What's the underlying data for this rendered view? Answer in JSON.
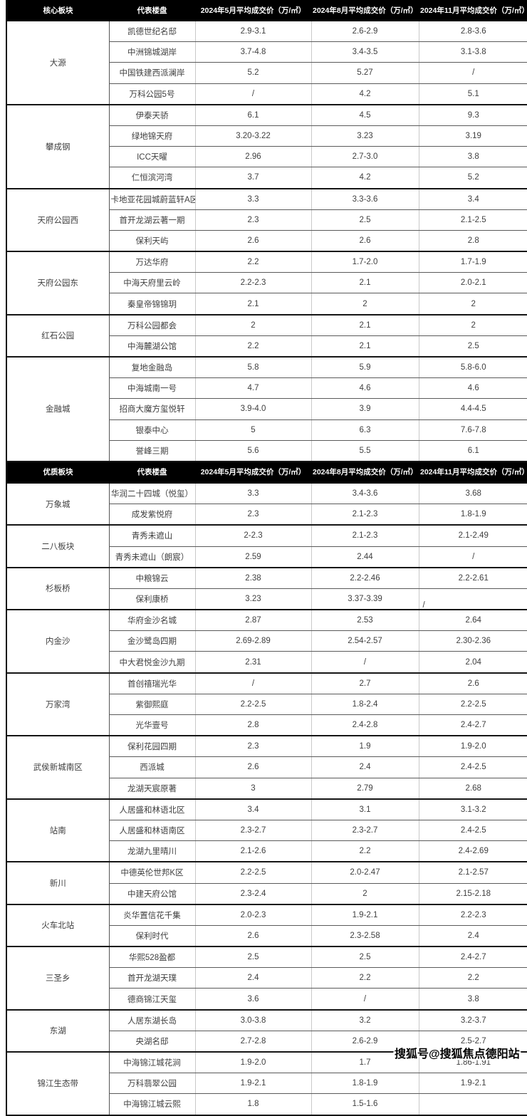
{
  "table": {
    "sections": [
      {
        "header": [
          "核心板块",
          "代表楼盘",
          "2024年5月平均成交价（万/㎡）",
          "2024年8月平均成交价（万/㎡）",
          "2024年11月平均成交价（万/㎡）"
        ],
        "groups": [
          {
            "area": "大源",
            "rows": [
              [
                "凯德世纪名邸",
                "2.9-3.1",
                "2.6-2.9",
                "2.8-3.6"
              ],
              [
                "中洲锦城湖岸",
                "3.7-4.8",
                "3.4-3.5",
                "3.1-3.8"
              ],
              [
                "中国铁建西派澜岸",
                "5.2",
                "5.27",
                "/"
              ],
              [
                "万科公园5号",
                "/",
                "4.2",
                "5.1"
              ]
            ]
          },
          {
            "area": "攀成钢",
            "rows": [
              [
                "伊泰天骄",
                "6.1",
                "4.5",
                "9.3"
              ],
              [
                "绿地锦天府",
                "3.20-3.22",
                "3.23",
                "3.19"
              ],
              [
                "ICC天曜",
                "2.96",
                "2.7-3.0",
                "3.8"
              ],
              [
                "仁恒滨河湾",
                "3.7",
                "4.2",
                "5.2"
              ]
            ]
          },
          {
            "area": "天府公园西",
            "rows": [
              [
                "卡地亚花园城蔚蓝轩A区",
                "3.3",
                "3.3-3.6",
                "3.4"
              ],
              [
                "首开龙湖云著一期",
                "2.3",
                "2.5",
                "2.1-2.5"
              ],
              [
                "保利天屿",
                "2.6",
                "2.6",
                "2.8"
              ]
            ]
          },
          {
            "area": "天府公园东",
            "rows": [
              [
                "万达华府",
                "2.2",
                "1.7-2.0",
                "1.7-1.9"
              ],
              [
                "中海天府里云岭",
                "2.2-2.3",
                "2.1",
                "2.0-2.1"
              ],
              [
                "秦皇帝锦锦玥",
                "2.1",
                "2",
                "2"
              ]
            ]
          },
          {
            "area": "红石公园",
            "rows": [
              [
                "万科公园都会",
                "2",
                "2.1",
                "2"
              ],
              [
                "中海麓湖公馆",
                "2.2",
                "2.1",
                "2.5"
              ]
            ]
          },
          {
            "area": "金融城",
            "rows": [
              [
                "复地金融岛",
                "5.8",
                "5.9",
                "5.8-6.0"
              ],
              [
                "中海城南一号",
                "4.7",
                "4.6",
                "4.6"
              ],
              [
                "招商大魔方玺悦轩",
                "3.9-4.0",
                "3.9",
                "4.4-4.5"
              ],
              [
                "银泰中心",
                "5",
                "6.3",
                "7.6-7.8"
              ],
              [
                "誉峰三期",
                "5.6",
                "5.5",
                "6.1"
              ]
            ]
          }
        ]
      },
      {
        "header": [
          "优质板块",
          "代表楼盘",
          "2024年5月平均成交价（万/㎡）",
          "2024年8月平均成交价（万/㎡）",
          "2024年11月平均成交价（万/㎡）"
        ],
        "groups": [
          {
            "area": "万象城",
            "rows": [
              [
                "华润二十四城（悦玺）",
                "3.3",
                "3.4-3.6",
                "3.68"
              ],
              [
                "成发紫悦府",
                "2.3",
                "2.1-2.3",
                "1.8-1.9"
              ]
            ]
          },
          {
            "area": "二八板块",
            "rows": [
              [
                "青秀未遮山",
                "2-2.3",
                "2.1-2.3",
                "2.1-2.49"
              ],
              [
                "青秀未遮山（朗宸）",
                "2.59",
                "2.44",
                "/"
              ]
            ]
          },
          {
            "area": "杉板桥",
            "rows": [
              [
                "中粮锦云",
                "2.38",
                "2.2-2.46",
                "2.2-2.61"
              ],
              [
                "保利康桥",
                "3.23",
                "3.37-3.39",
                "/"
              ]
            ]
          },
          {
            "area": "内金沙",
            "rows": [
              [
                "华府金沙名城",
                "2.87",
                "2.53",
                "2.64"
              ],
              [
                "金沙鹭岛四期",
                "2.69-2.89",
                "2.54-2.57",
                "2.30-2.36"
              ],
              [
                "中大君悦金沙九期",
                "2.31",
                "/",
                "2.04"
              ]
            ]
          },
          {
            "area": "万家湾",
            "rows": [
              [
                "首创禧瑞光华",
                "/",
                "2.7",
                "2.6"
              ],
              [
                "紫御熙庭",
                "2.2-2.5",
                "1.8-2.4",
                "2.2-2.5"
              ],
              [
                "光华壹号",
                "2.8",
                "2.4-2.8",
                "2.4-2.7"
              ]
            ]
          },
          {
            "area": "武侯新城南区",
            "rows": [
              [
                "保利花园四期",
                "2.3",
                "1.9",
                "1.9-2.0"
              ],
              [
                "西派城",
                "2.6",
                "2.4",
                "2.4-2.5"
              ],
              [
                "龙湖天宸原著",
                "3",
                "2.79",
                "2.68"
              ]
            ]
          },
          {
            "area": "站南",
            "rows": [
              [
                "人居盛和林语北区",
                "3.4",
                "3.1",
                "3.1-3.2"
              ],
              [
                "人居盛和林语南区",
                "2.3-2.7",
                "2.3-2.7",
                "2.4-2.5"
              ],
              [
                "龙湖九里晴川",
                "2.1-2.6",
                "2.2",
                "2.4-2.69"
              ]
            ]
          },
          {
            "area": "新川",
            "rows": [
              [
                "中德英伦世邦K区",
                "2.2-2.5",
                "2.0-2.47",
                "2.1-2.57"
              ],
              [
                "中建天府公馆",
                "2.3-2.4",
                "2",
                "2.15-2.18"
              ]
            ]
          },
          {
            "area": "火车北站",
            "rows": [
              [
                "炎华置信花千集",
                "2.0-2.3",
                "1.9-2.1",
                "2.2-2.3"
              ],
              [
                "保利时代",
                "2.6",
                "2.3-2.58",
                "2.4"
              ]
            ]
          },
          {
            "area": "三圣乡",
            "rows": [
              [
                "华熙528盈都",
                "2.5",
                "2.5",
                "2.4-2.7"
              ],
              [
                "首开龙湖天璞",
                "2.4",
                "2.2",
                "2.2"
              ],
              [
                "德商锦江天玺",
                "3.6",
                "/",
                "3.8"
              ]
            ]
          },
          {
            "area": "东湖",
            "rows": [
              [
                "人居东湖长岛",
                "3.0-3.8",
                "3.2",
                "3.2-3.7"
              ],
              [
                "央湖名邸",
                "2.7-2.8",
                "2.6-2.9",
                "2.5-2.7"
              ]
            ]
          },
          {
            "area": "锦江生态带",
            "rows": [
              [
                "中海锦江城花涧",
                "1.9-2.0",
                "1.7",
                "1.86-1.91"
              ],
              [
                "万科翡翠公园",
                "1.9-2.1",
                "1.8-1.9",
                "1.9-2.1"
              ],
              [
                "中海锦江城云熙",
                "1.8",
                "1.5-1.6",
                ""
              ]
            ]
          }
        ]
      }
    ],
    "layout_quirks": {
      "offset_slash_bind": "table.sections.1.groups.2.rows.1.3"
    }
  },
  "watermark": "搜狐号@搜狐焦点德阳站",
  "colors": {
    "header_bg": "#000000",
    "header_text": "#ffffff",
    "body_text": "#3f3f3f",
    "grid_vertical": "#c9c9c9",
    "grid_horizontal": "#5a5a5a",
    "group_border": "#151515",
    "watermark_text": "#000000",
    "watermark_outline": "#ffffff"
  }
}
